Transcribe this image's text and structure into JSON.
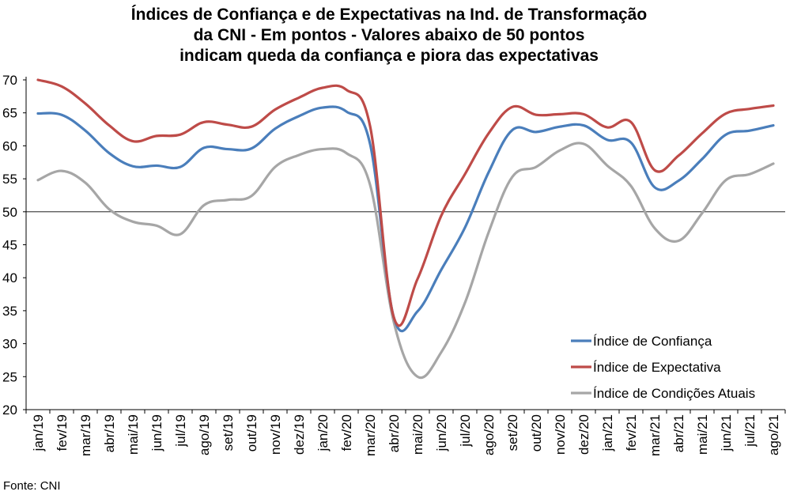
{
  "chart_data": {
    "type": "line",
    "title_lines": [
      "Índices de Confiança e de Expectativas na Ind. de Transformação",
      "da CNI - Em pontos - Valores abaixo de 50 pontos",
      "indicam queda da confiança e piora das expectativas"
    ],
    "categories": [
      "jan/19",
      "fev/19",
      "mar/19",
      "abr/19",
      "mai/19",
      "jun/19",
      "jul/19",
      "ago/19",
      "set/19",
      "out/19",
      "nov/19",
      "dez/19",
      "jan/20",
      "fev/20",
      "mar/20",
      "abr/20",
      "mai/20",
      "jun/20",
      "jul/20",
      "ago/20",
      "set/20",
      "out/20",
      "nov/20",
      "dez/20",
      "jan/21",
      "fev/21",
      "mar/21",
      "abr/21",
      "mai/21",
      "jun/21",
      "jul/21",
      "ago/21"
    ],
    "ylim": [
      20,
      70
    ],
    "yticks": [
      "20",
      "25",
      "30",
      "35",
      "40",
      "45",
      "50",
      "55",
      "60",
      "65",
      "70"
    ],
    "reference_line": 50,
    "legend_position": "bottom-right",
    "series": [
      {
        "name": "Índice de Confiança",
        "color": "#4a7ebb",
        "values": [
          64.9,
          64.7,
          62.3,
          58.9,
          56.9,
          57.0,
          56.8,
          59.7,
          59.5,
          59.6,
          62.6,
          64.5,
          65.8,
          65.2,
          60.3,
          34.0,
          34.9,
          41.2,
          47.6,
          56.0,
          62.4,
          62.1,
          62.9,
          63.1,
          60.9,
          60.5,
          53.7,
          54.7,
          58.0,
          61.7,
          62.3,
          63.1
        ]
      },
      {
        "name": "Índice de Expectativa",
        "color": "#be4b48",
        "values": [
          70.0,
          69.0,
          66.4,
          63.1,
          60.7,
          61.5,
          61.7,
          63.6,
          63.2,
          62.9,
          65.5,
          67.3,
          68.8,
          68.5,
          63.0,
          34.0,
          39.8,
          49.4,
          55.7,
          61.9,
          65.9,
          64.7,
          64.8,
          64.8,
          62.8,
          63.6,
          56.3,
          58.5,
          61.9,
          64.9,
          65.6,
          66.1
        ]
      },
      {
        "name": "Índice de Condições Atuais",
        "color": "#a6a6a6",
        "values": [
          54.8,
          56.2,
          54.4,
          50.4,
          48.5,
          47.9,
          46.6,
          51.0,
          51.8,
          52.4,
          56.8,
          58.6,
          59.5,
          58.9,
          54.1,
          33.3,
          25.0,
          28.7,
          36.2,
          46.9,
          55.3,
          56.8,
          59.3,
          60.3,
          57.0,
          53.9,
          47.5,
          45.6,
          49.8,
          54.8,
          55.7,
          57.3
        ]
      }
    ],
    "source": "Fonte: CNI"
  }
}
